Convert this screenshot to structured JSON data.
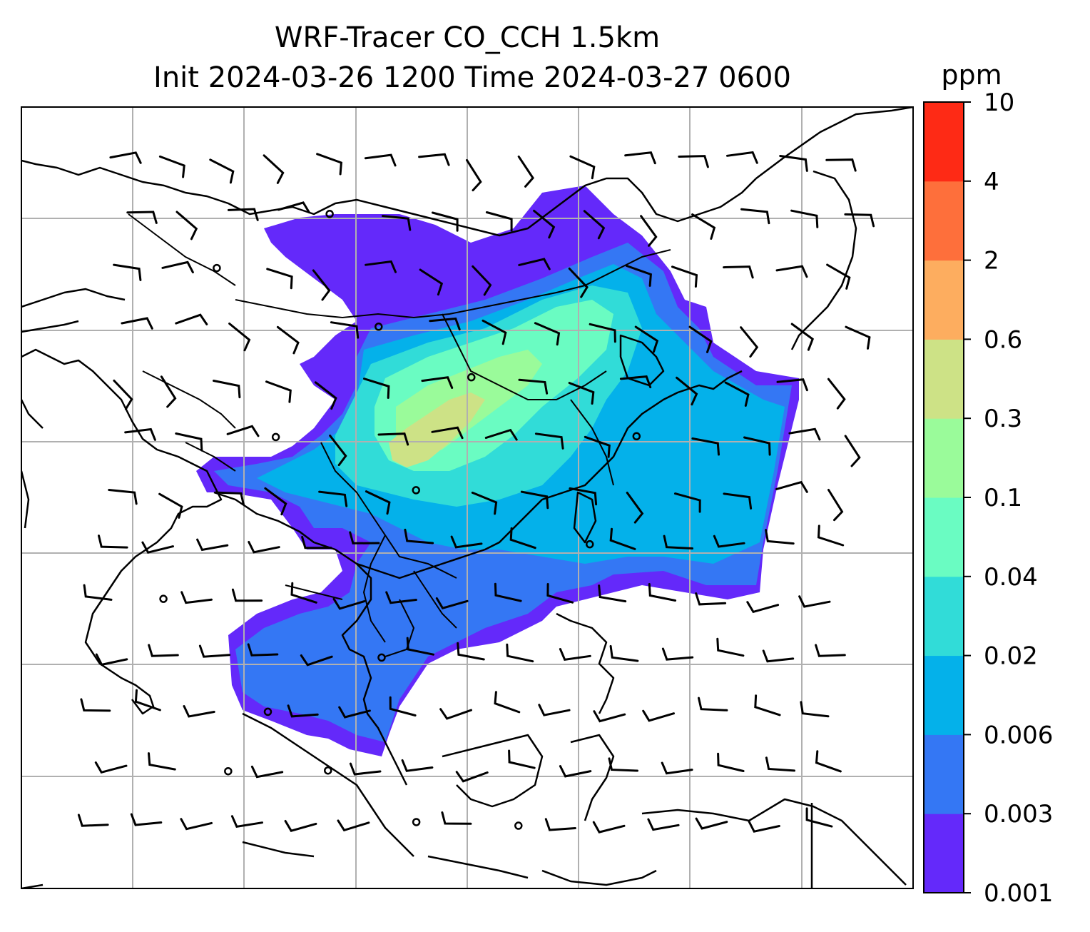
{
  "chart_data": {
    "type": "heatmap",
    "title_line1": "WRF-Tracer CO_CCH 1.5km",
    "title_line2": "Init 2024-03-26 1200 Time 2024-03-27 0600",
    "variable": "CO_CCH",
    "colorbar": {
      "unit": "ppm",
      "tick_labels": [
        "0.001",
        "0.003",
        "0.006",
        "0.02",
        "0.04",
        "0.1",
        "0.3",
        "0.6",
        "2",
        "4",
        "10"
      ],
      "levels": [
        0.001,
        0.003,
        0.006,
        0.02,
        0.04,
        0.1,
        0.3,
        0.6,
        2,
        4,
        10
      ],
      "colors": [
        "#6429fa",
        "#3477f4",
        "#04b1ea",
        "#31dcd8",
        "#6afcc2",
        "#9afb9a",
        "#cde286",
        "#fdad5f",
        "#fe6f3b",
        "#fe2a15"
      ]
    },
    "grid": true,
    "overlays": [
      "coastlines",
      "country borders",
      "wind barbs"
    ]
  }
}
